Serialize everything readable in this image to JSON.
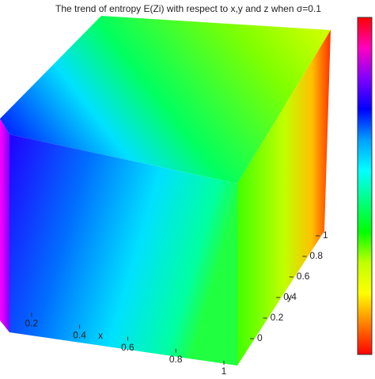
{
  "chart_data": {
    "type": "slice",
    "title": "The trend of entropy E(Zi) with respect to x,y and z when σ=0.1",
    "x_label": "x",
    "y_label": "y",
    "xlim": [
      0,
      1
    ],
    "xticks": [
      0.2,
      0.4,
      0.6,
      0.8,
      1
    ],
    "ylim": [
      0,
      1
    ],
    "yticks": [
      0,
      0.2,
      0.4,
      0.6,
      0.8,
      1
    ],
    "colormap": "hsv"
  }
}
